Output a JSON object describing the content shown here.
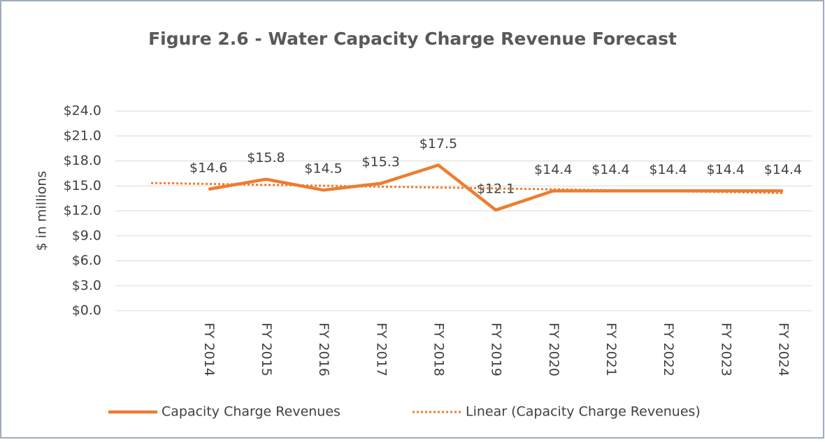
{
  "chart_data": {
    "type": "line",
    "title": "Figure 2.6 - Water Capacity Charge Revenue Forecast",
    "y_label": "$ in millions",
    "categories": [
      null,
      "FY 2014",
      "FY 2015",
      "FY 2016",
      "FY 2017",
      "FY 2018",
      "FY 2019",
      "FY 2020",
      "FY 2021",
      "FY 2022",
      "FY 2023",
      "FY 2024"
    ],
    "series": [
      {
        "name": "Capacity Charge Revenues",
        "color": "#ED7D31",
        "style": "solid",
        "values": [
          null,
          14.6,
          15.8,
          14.5,
          15.3,
          17.5,
          12.1,
          14.4,
          14.4,
          14.4,
          14.4,
          14.4
        ],
        "value_labels": [
          null,
          "$14.6",
          "$15.8",
          "$14.5",
          "$15.3",
          "$17.5",
          "$12.1",
          "$14.4",
          "$14.4",
          "$14.4",
          "$14.4",
          "$14.4"
        ]
      },
      {
        "name": "Linear (Capacity Charge Revenues)",
        "color": "#ED7D31",
        "style": "dotted",
        "values": [
          15.35,
          15.24,
          15.13,
          15.02,
          14.91,
          14.81,
          14.7,
          14.59,
          14.48,
          14.37,
          14.26,
          14.15
        ]
      }
    ],
    "ylim": [
      0,
      24
    ],
    "yticks": [
      {
        "value": 0,
        "label": "$0.0"
      },
      {
        "value": 3,
        "label": "$3.0"
      },
      {
        "value": 6,
        "label": "$6.0"
      },
      {
        "value": 9,
        "label": "$9.0"
      },
      {
        "value": 12,
        "label": "$12.0"
      },
      {
        "value": 15,
        "label": "$15.0"
      },
      {
        "value": 18,
        "label": "$18.0"
      },
      {
        "value": 21,
        "label": "$21.0"
      },
      {
        "value": 24,
        "label": "$24.0"
      }
    ],
    "grid": true,
    "legend": "bottom"
  }
}
